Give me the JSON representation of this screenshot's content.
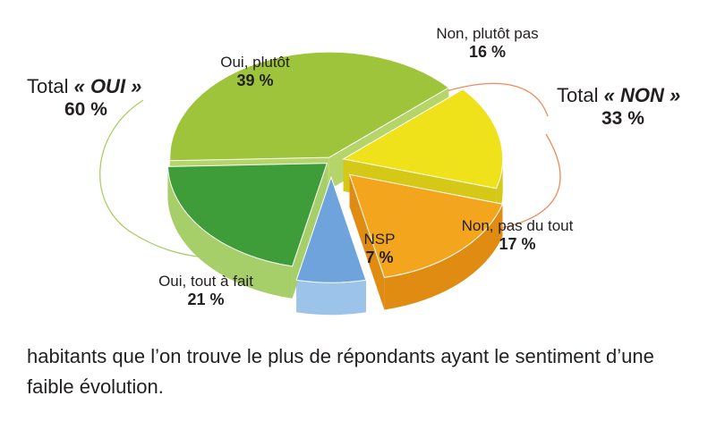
{
  "chart_data": {
    "type": "pie",
    "title": "",
    "slices": [
      {
        "label": "Oui, plutôt",
        "value": 39,
        "value_label": "39 %",
        "color": "#9dc43a",
        "side": "#b5d46a"
      },
      {
        "label": "Non, plutôt pas",
        "value": 16,
        "value_label": "16 %",
        "color": "#f0e21a",
        "side": "#d6c817"
      },
      {
        "label": "Non, pas du tout",
        "value": 17,
        "value_label": "17 %",
        "color": "#f4a51e",
        "side": "#e08c12"
      },
      {
        "label": "NSP",
        "value": 7,
        "value_label": "7 %",
        "color": "#6fa3dc",
        "side": "#9cc3ea"
      },
      {
        "label": "Oui, tout à fait",
        "value": 21,
        "value_label": "21 %",
        "color": "#3e9d39",
        "side": "#a6cf6a"
      }
    ],
    "groups": [
      {
        "prefix": "Total ",
        "name": "« OUI »",
        "value_label": "60 %",
        "color": "#a8cf62"
      },
      {
        "prefix": "Total ",
        "name": "« NON »",
        "value_label": "33 %",
        "color": "#f08a5a"
      }
    ]
  },
  "caption": "habitants que l’on trouve le plus de répondants ayant le sentiment d’une faible évolution."
}
